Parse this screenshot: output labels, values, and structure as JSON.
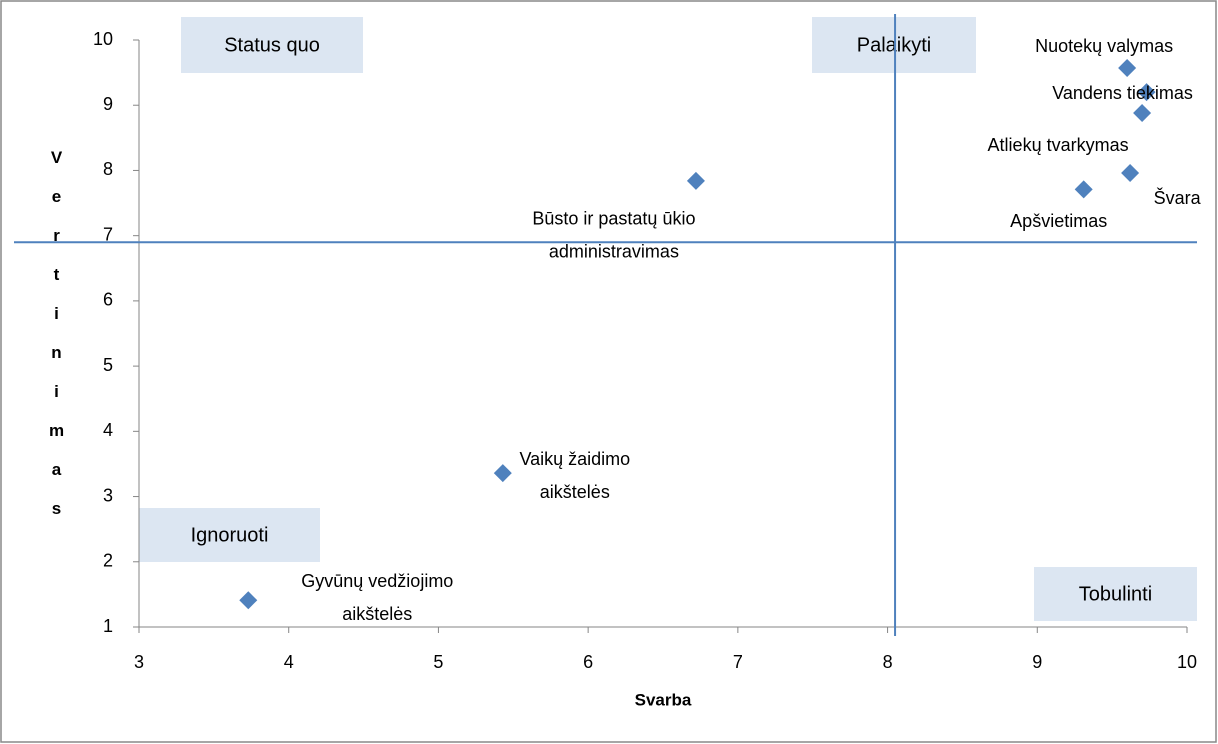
{
  "chart_data": {
    "type": "scatter",
    "x_label": "Svarba",
    "y_label": "Vertinimas",
    "xlim": [
      3,
      10
    ],
    "xticks": [
      3,
      4,
      5,
      6,
      7,
      8,
      9,
      10
    ],
    "ylim": [
      1,
      10
    ],
    "yticks": [
      1,
      2,
      3,
      4,
      5,
      6,
      7,
      8,
      9,
      10
    ],
    "color": "#4f81bd",
    "points": [
      {
        "label": [
          "Nuotekų valymas"
        ],
        "x": 9.6,
        "y": 9.57
      },
      {
        "label": [
          "Vandens tiekimas"
        ],
        "x": 9.73,
        "y": 9.2
      },
      {
        "label": [
          "Atliekų tvarkymas"
        ],
        "x": 9.7,
        "y": 8.88
      },
      {
        "label": [
          "Švara"
        ],
        "x": 9.62,
        "y": 7.96
      },
      {
        "label": [
          "Apšvietimas"
        ],
        "x": 9.31,
        "y": 7.71
      },
      {
        "label": [
          "Būsto ir pastatų ūkio",
          "administravimas"
        ],
        "x": 6.72,
        "y": 7.84
      },
      {
        "label": [
          "Vaikų žaidimo",
          "aikštelės"
        ],
        "x": 5.43,
        "y": 3.36
      },
      {
        "label": [
          "Gyvūnų vedžiojimo",
          "aikštelės"
        ],
        "x": 3.73,
        "y": 1.41
      }
    ],
    "reference_lines": {
      "x": 8.05,
      "y": 6.9
    },
    "quadrant_labels": [
      "Status quo",
      "Palaikyti",
      "Ignoruoti",
      "Tobulinti"
    ]
  }
}
